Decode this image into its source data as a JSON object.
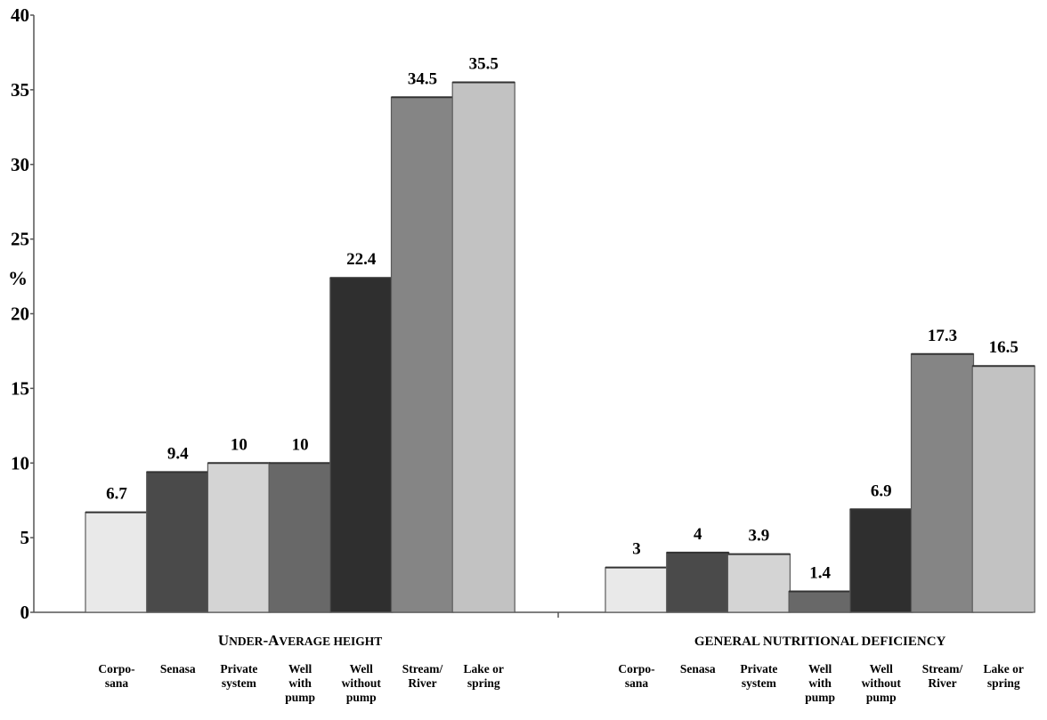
{
  "chart_data": {
    "type": "bar",
    "ylabel": "%",
    "ylim": [
      0,
      40
    ],
    "yticks": [
      "0",
      "5",
      "10",
      "15",
      "20",
      "25",
      "30",
      "35",
      "40"
    ],
    "categories": [
      "Corpo-\nsana",
      "Senasa",
      "Private\nsystem",
      "Well\nwith\npump",
      "Well\nwithout\npump",
      "Stream/\nRiver",
      "Lake or\nspring"
    ],
    "colors": [
      "#e9e9e9",
      "#4a4a4a",
      "#d4d4d4",
      "#686868",
      "#2f2f2f",
      "#858585",
      "#c2c2c2"
    ],
    "groups": [
      {
        "title_small_caps": [
          [
            "U",
            "big"
          ],
          [
            "NDER",
            "small"
          ],
          [
            "-A",
            "big"
          ],
          [
            "VERAGE HEIGHT",
            "small"
          ]
        ],
        "values": [
          6.7,
          9.4,
          10,
          10,
          22.4,
          34.5,
          35.5
        ],
        "value_labels": [
          "6.7",
          "9.4",
          "10",
          "10",
          "22.4",
          "34.5",
          "35.5"
        ]
      },
      {
        "title": "GENERAL NUTRITIONAL DEFICIENCY",
        "values": [
          3,
          4,
          3.9,
          1.4,
          6.9,
          17.3,
          16.5
        ],
        "value_labels": [
          "3",
          "4",
          "3.9",
          "1.4",
          "6.9",
          "17.3",
          "16.5"
        ]
      }
    ]
  }
}
